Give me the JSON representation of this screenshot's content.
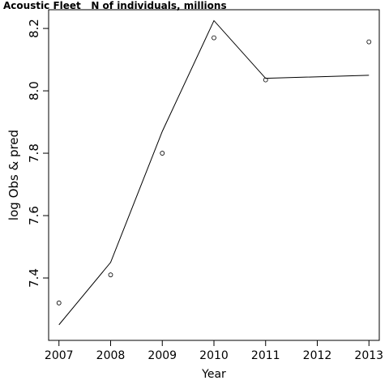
{
  "chart_data": {
    "type": "line",
    "title": "Acoustic Fleet   N of individuals, millions",
    "xlabel": "Year",
    "ylabel": "log Obs & pred",
    "xlim": [
      2006.8,
      2013.2
    ],
    "ylim": [
      7.2,
      8.26
    ],
    "x_ticks": [
      2007,
      2008,
      2009,
      2010,
      2011,
      2012,
      2013
    ],
    "y_ticks": [
      7.4,
      7.6,
      7.8,
      8.0,
      8.2
    ],
    "grid": false,
    "series": [
      {
        "style": "points",
        "x": [
          2007,
          2008,
          2009,
          2010,
          2011,
          2013
        ],
        "y": [
          7.32,
          7.41,
          7.8,
          8.17,
          8.035,
          8.157
        ]
      },
      {
        "style": "line",
        "x": [
          2007,
          2008,
          2009,
          2010,
          2011,
          2013
        ],
        "y": [
          7.25,
          7.45,
          7.87,
          8.225,
          8.04,
          8.05
        ]
      }
    ]
  }
}
